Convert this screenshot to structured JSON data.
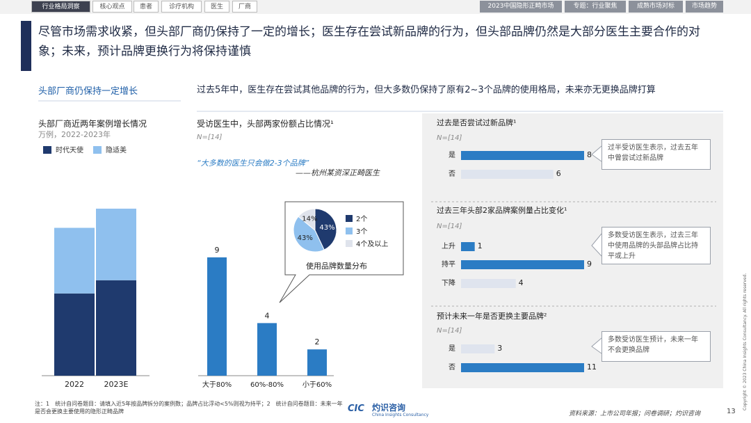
{
  "nav": {
    "left_tabs": [
      "行业格局洞察",
      "核心观点",
      "患者",
      "诊疗机构",
      "医生",
      "厂商"
    ],
    "right_tabs": [
      "2023中国隐形正畸市场",
      "专题：行业聚焦",
      "成熟市场对标",
      "市场趋势"
    ]
  },
  "title": "尽管市场需求收紧，但头部厂商仍保持了一定的增长；医生存在尝试新品牌的行为，但头部品牌仍然是大部分医生主要合作的对象；未来，预计品牌更换行为将保持谨慎",
  "section_headers": [
    "头部厂商仍保持一定增长",
    "过去5年中，医生存在尝试其他品牌的行为，但大多数仍保持了原有2~3个品牌的使用格局，未来亦无更换品牌打算"
  ],
  "chart_data": [
    {
      "type": "bar",
      "stacked": true,
      "title": "头部厂商近两年案例增长情况",
      "subtitle": "万例，2022-2023年",
      "categories": [
        "2022",
        "2023E"
      ],
      "series": [
        {
          "name": "时代天使",
          "color": "#1f3a6e",
          "values": [
            19.3,
            22.4
          ]
        },
        {
          "name": "隐适美",
          "color": "#8fc0ee",
          "values": [
            15.4,
            16.8
          ]
        }
      ],
      "ylim": [
        0,
        40
      ]
    },
    {
      "type": "bar",
      "title": "受访医生中，头部两家份额占比情况¹",
      "sample": "N=[14]",
      "quote": "“大多数的医生只会做2-3个品牌”",
      "quote_source": "——杭州某资深正畸医生",
      "categories": [
        "大于80%",
        "60%-80%",
        "小于60%"
      ],
      "values": [
        9,
        4,
        2
      ],
      "color": "#2b7cc4",
      "ylim": [
        0,
        10
      ]
    },
    {
      "type": "pie",
      "title": "使用品牌数量分布",
      "categories": [
        "2个",
        "3个",
        "4个及以上"
      ],
      "values": [
        43,
        43,
        14
      ],
      "value_labels": [
        "43%",
        "43%",
        "14%"
      ],
      "colors": [
        "#1f3a6e",
        "#8fc0ee",
        "#dfe3ec"
      ]
    },
    {
      "type": "barh",
      "title": "过去是否尝试过新品牌¹",
      "sample": "N=[14]",
      "categories": [
        "是",
        "否"
      ],
      "values": [
        8,
        6
      ],
      "colors": [
        "#2b7cc4",
        "#dfe4ee"
      ],
      "xlim": [
        0,
        8
      ],
      "callout": "过半受访医生表示，过去五年中曾尝试过新品牌"
    },
    {
      "type": "barh",
      "title": "过去三年头部2家品牌案例量占比变化¹",
      "sample": "N=[14]",
      "categories": [
        "上升",
        "持平",
        "下降"
      ],
      "values": [
        1,
        9,
        4
      ],
      "colors": [
        "#2b7cc4",
        "#2b7cc4",
        "#dfe4ee"
      ],
      "xlim": [
        0,
        9
      ],
      "callout": "多数受访医生表示，过去三年中使用品牌的头部品牌占比持平或上升"
    },
    {
      "type": "barh",
      "title": "预计未来一年是否更换主要品牌²",
      "sample": "N=[14]",
      "categories": [
        "是",
        "否"
      ],
      "values": [
        3,
        11
      ],
      "colors": [
        "#dfe4ee",
        "#2b7cc4"
      ],
      "xlim": [
        0,
        11
      ],
      "callout": "多数受访医生预计，未来一年不会更换品牌"
    }
  ],
  "footnote": "注：1　统计自问卷题目：请填入近5年按品牌拆分的案例数；品牌占比浮动<5%则视为持平；2　统计自问卷题目：未来一年是否会更换主要使用的隐形正畸品牌",
  "logo": {
    "mark": "CIC",
    "name": "灼识咨询",
    "english": "China Insights Consultancy"
  },
  "source": "资料来源：上市公司年报；问卷调研；灼识咨询",
  "page_number": "13",
  "copyright": "Copyright © 2023 China Insights Consultancy. All rights reserved."
}
